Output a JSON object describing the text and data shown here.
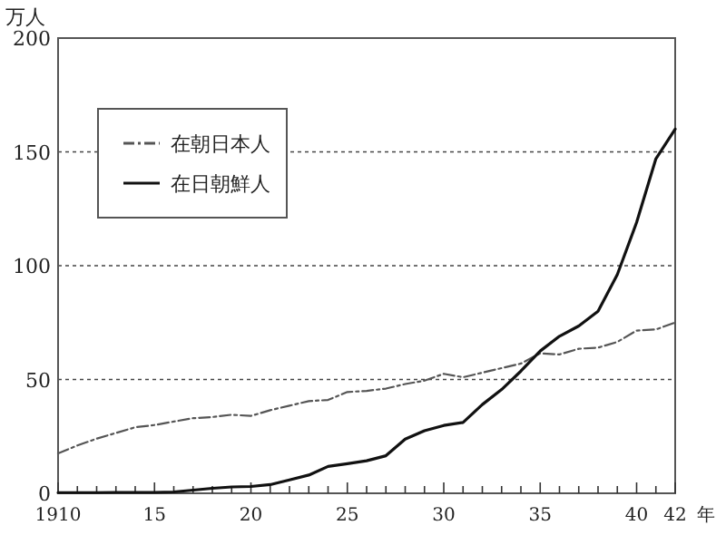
{
  "chart_data": {
    "type": "line",
    "ylabel": "万人",
    "x": [
      1910,
      1911,
      1912,
      1913,
      1914,
      1915,
      1916,
      1917,
      1918,
      1919,
      1920,
      1921,
      1922,
      1923,
      1924,
      1925,
      1926,
      1927,
      1928,
      1929,
      1930,
      1931,
      1932,
      1933,
      1934,
      1935,
      1936,
      1937,
      1938,
      1939,
      1940,
      1941,
      1942
    ],
    "series": [
      {
        "name": "在朝日本人",
        "color": "#555555",
        "line_style": "dashdot",
        "values": [
          17.5,
          21,
          24,
          26.5,
          29,
          30,
          31.5,
          33,
          33.5,
          34.5,
          34,
          36.5,
          38.5,
          40.5,
          41,
          44.5,
          45,
          46,
          48,
          49.5,
          52.5,
          51,
          53,
          55,
          57,
          61.5,
          61,
          63.5,
          64,
          66.5,
          71.5,
          72,
          75
        ]
      },
      {
        "name": "在日朝鮮人",
        "color": "#111111",
        "line_style": "solid",
        "values": [
          0.3,
          0.3,
          0.3,
          0.4,
          0.4,
          0.4,
          0.6,
          1.4,
          2.2,
          2.8,
          3,
          3.8,
          5.9,
          8,
          11.8,
          13,
          14.3,
          16.5,
          23.8,
          27.5,
          29.8,
          31.1,
          39,
          45.6,
          53.7,
          62.5,
          69,
          73.5,
          80,
          96.1,
          119,
          147,
          160
        ]
      }
    ],
    "xlim": [
      1910,
      1942
    ],
    "xticks": [
      {
        "value": 1910,
        "label": "1910"
      },
      {
        "value": 1911,
        "label": null
      },
      {
        "value": 1912,
        "label": null
      },
      {
        "value": 1913,
        "label": null
      },
      {
        "value": 1914,
        "label": null
      },
      {
        "value": 1915,
        "label": "15"
      },
      {
        "value": 1916,
        "label": null
      },
      {
        "value": 1917,
        "label": null
      },
      {
        "value": 1918,
        "label": null
      },
      {
        "value": 1919,
        "label": null
      },
      {
        "value": 1920,
        "label": "20"
      },
      {
        "value": 1921,
        "label": null
      },
      {
        "value": 1922,
        "label": null
      },
      {
        "value": 1923,
        "label": null
      },
      {
        "value": 1924,
        "label": null
      },
      {
        "value": 1925,
        "label": "25"
      },
      {
        "value": 1926,
        "label": null
      },
      {
        "value": 1927,
        "label": null
      },
      {
        "value": 1928,
        "label": null
      },
      {
        "value": 1929,
        "label": null
      },
      {
        "value": 1930,
        "label": "30"
      },
      {
        "value": 1931,
        "label": null
      },
      {
        "value": 1932,
        "label": null
      },
      {
        "value": 1933,
        "label": null
      },
      {
        "value": 1934,
        "label": null
      },
      {
        "value": 1935,
        "label": "35"
      },
      {
        "value": 1936,
        "label": null
      },
      {
        "value": 1937,
        "label": null
      },
      {
        "value": 1938,
        "label": null
      },
      {
        "value": 1939,
        "label": null
      },
      {
        "value": 1940,
        "label": "40"
      },
      {
        "value": 1941,
        "label": null
      },
      {
        "value": 1942,
        "label": "42"
      }
    ],
    "xlabel": "年",
    "ylim": [
      0,
      200
    ],
    "yticks": [
      0,
      50,
      100,
      150,
      200
    ],
    "grid": "y",
    "legend": "top left",
    "marker": "none"
  }
}
